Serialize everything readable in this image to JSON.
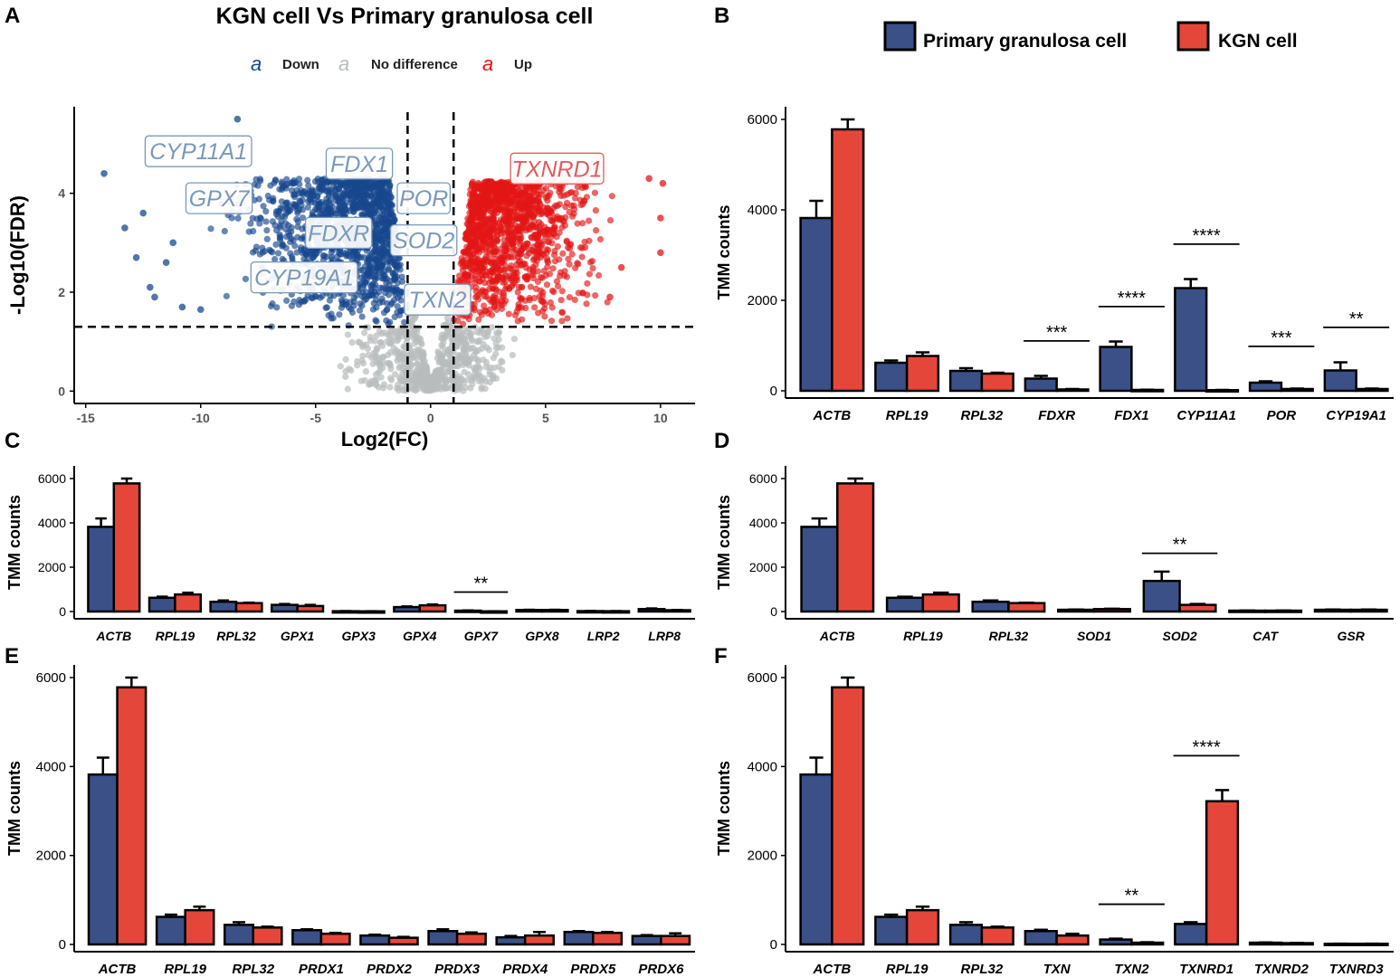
{
  "colors": {
    "primary": "#3C5088",
    "kgn": "#E4473A",
    "down": "#17478D",
    "up": "#E41515",
    "nodiff": "#B8BCBC",
    "label_down": "#7899BB",
    "label_up": "#E05C5C"
  },
  "legend": {
    "primary_label": "Primary granulosa cell",
    "kgn_label": "KGN cell"
  },
  "chart_data": [
    {
      "panel": "A",
      "type": "scatter",
      "title": "KGN cell Vs Primary granulosa cell",
      "xlabel": "Log2(FC)",
      "ylabel": "-Log10(FDR)",
      "xlim": [
        -15.5,
        11.5
      ],
      "ylim": [
        -0.25,
        5.75
      ],
      "xticks": [
        -15,
        -10,
        -5,
        0,
        5,
        10
      ],
      "yticks": [
        0,
        2,
        4
      ],
      "legend_glyph": "a",
      "legend": [
        {
          "name": "Down",
          "color_key": "down"
        },
        {
          "name": "No difference",
          "color_key": "nodiff"
        },
        {
          "name": "Up",
          "color_key": "up"
        }
      ],
      "thresholds": {
        "log2fc": [
          -1,
          1
        ],
        "neg_log10_fdr": 1.3
      },
      "labels": [
        {
          "text": "CYP11A1",
          "x": -10.1,
          "y": 4.85,
          "group": "down"
        },
        {
          "text": "FDX1",
          "x": -3.1,
          "y": 4.6,
          "group": "down"
        },
        {
          "text": "GPX7",
          "x": -9.2,
          "y": 3.9,
          "group": "down"
        },
        {
          "text": "FDXR",
          "x": -4.0,
          "y": 3.2,
          "group": "down"
        },
        {
          "text": "CYP19A1",
          "x": -5.5,
          "y": 2.3,
          "group": "down"
        },
        {
          "text": "POR",
          "x": -0.3,
          "y": 3.9,
          "group": "down"
        },
        {
          "text": "SOD2",
          "x": -0.3,
          "y": 3.05,
          "group": "down"
        },
        {
          "text": "TXN2",
          "x": 0.3,
          "y": 1.85,
          "group": "down"
        },
        {
          "text": "TXNRD1",
          "x": 5.5,
          "y": 4.5,
          "group": "up"
        }
      ],
      "outlier_points": [
        {
          "x": -8.4,
          "y": 5.5,
          "group": "down"
        },
        {
          "x": -14.2,
          "y": 4.4,
          "group": "down"
        },
        {
          "x": -12.5,
          "y": 3.6,
          "group": "down"
        },
        {
          "x": -13.3,
          "y": 3.3,
          "group": "down"
        },
        {
          "x": -12.8,
          "y": 2.7,
          "group": "down"
        },
        {
          "x": -11.5,
          "y": 2.6,
          "group": "down"
        },
        {
          "x": -12.2,
          "y": 2.1,
          "group": "down"
        },
        {
          "x": -12.0,
          "y": 1.9,
          "group": "down"
        },
        {
          "x": -10.8,
          "y": 1.7,
          "group": "down"
        },
        {
          "x": -10.0,
          "y": 1.65,
          "group": "down"
        },
        {
          "x": -11.2,
          "y": 3.0,
          "group": "down"
        },
        {
          "x": 10.0,
          "y": 3.5,
          "group": "up"
        },
        {
          "x": 10.1,
          "y": 4.2,
          "group": "up"
        },
        {
          "x": 9.5,
          "y": 4.3,
          "group": "up"
        },
        {
          "x": 10.0,
          "y": 2.8,
          "group": "up"
        },
        {
          "x": 8.3,
          "y": 2.5,
          "group": "up"
        },
        {
          "x": 7.8,
          "y": 1.9,
          "group": "up"
        }
      ]
    },
    {
      "panel": "B",
      "type": "bar",
      "ylabel": "TMM counts",
      "ylim": [
        0,
        6000
      ],
      "yticks": [
        0,
        2000,
        4000,
        6000
      ],
      "categories": [
        "ACTB",
        "RPL19",
        "RPL32",
        "FDXR",
        "FDX1",
        "CYP11A1",
        "POR",
        "CYP19A1"
      ],
      "series": [
        {
          "name": "Primary granulosa cell",
          "values": [
            3820,
            620,
            440,
            270,
            970,
            2270,
            180,
            450
          ],
          "errors": [
            380,
            50,
            60,
            60,
            120,
            200,
            30,
            180
          ]
        },
        {
          "name": "KGN cell",
          "values": [
            5780,
            770,
            380,
            30,
            20,
            15,
            40,
            40
          ],
          "errors": [
            220,
            80,
            20,
            10,
            5,
            5,
            10,
            10
          ]
        }
      ],
      "significance": [
        {
          "category": "FDXR",
          "stars": "***"
        },
        {
          "category": "FDX1",
          "stars": "****"
        },
        {
          "category": "CYP11A1",
          "stars": "****"
        },
        {
          "category": "POR",
          "stars": "***"
        },
        {
          "category": "CYP19A1",
          "stars": "**"
        }
      ]
    },
    {
      "panel": "C",
      "type": "bar",
      "ylabel": "TMM counts",
      "ylim": [
        0,
        6000
      ],
      "yticks": [
        0,
        2000,
        4000,
        6000
      ],
      "categories": [
        "ACTB",
        "RPL19",
        "RPL32",
        "GPX1",
        "GPX3",
        "GPX4",
        "GPX7",
        "GPX8",
        "LRP2",
        "LRP8"
      ],
      "series": [
        {
          "name": "Primary granulosa cell",
          "values": [
            3820,
            620,
            440,
            300,
            15,
            200,
            40,
            70,
            20,
            110
          ],
          "errors": [
            380,
            50,
            60,
            40,
            5,
            30,
            10,
            10,
            5,
            30
          ]
        },
        {
          "name": "KGN cell",
          "values": [
            5780,
            770,
            380,
            250,
            10,
            280,
            10,
            70,
            15,
            60
          ],
          "errors": [
            220,
            80,
            20,
            50,
            5,
            40,
            3,
            10,
            5,
            10
          ]
        }
      ],
      "significance": [
        {
          "category": "GPX7",
          "stars": "**"
        }
      ]
    },
    {
      "panel": "D",
      "type": "bar",
      "ylabel": "TMM counts",
      "ylim": [
        0,
        6000
      ],
      "yticks": [
        0,
        2000,
        4000,
        6000
      ],
      "categories": [
        "ACTB",
        "RPL19",
        "RPL32",
        "SOD1",
        "SOD2",
        "CAT",
        "GSR"
      ],
      "series": [
        {
          "name": "Primary granulosa cell",
          "values": [
            3820,
            620,
            440,
            80,
            1380,
            40,
            80
          ],
          "errors": [
            380,
            50,
            60,
            10,
            420,
            5,
            10
          ]
        },
        {
          "name": "KGN cell",
          "values": [
            5780,
            770,
            380,
            110,
            300,
            40,
            80
          ],
          "errors": [
            220,
            80,
            20,
            20,
            40,
            5,
            10
          ]
        }
      ],
      "significance": [
        {
          "category": "SOD2",
          "stars": "**"
        }
      ]
    },
    {
      "panel": "E",
      "type": "bar",
      "ylabel": "TMM counts",
      "ylim": [
        0,
        6000
      ],
      "yticks": [
        0,
        2000,
        4000,
        6000
      ],
      "categories": [
        "ACTB",
        "RPL19",
        "RPL32",
        "PRDX1",
        "PRDX2",
        "PRDX3",
        "PRDX4",
        "PRDX5",
        "PRDX6"
      ],
      "series": [
        {
          "name": "Primary granulosa cell",
          "values": [
            3820,
            620,
            440,
            320,
            200,
            300,
            160,
            280,
            190
          ],
          "errors": [
            380,
            50,
            60,
            20,
            20,
            40,
            30,
            20,
            20
          ]
        },
        {
          "name": "KGN cell",
          "values": [
            5780,
            770,
            380,
            240,
            150,
            240,
            200,
            260,
            190
          ],
          "errors": [
            220,
            80,
            20,
            20,
            20,
            30,
            80,
            20,
            60
          ]
        }
      ],
      "significance": []
    },
    {
      "panel": "F",
      "type": "bar",
      "ylabel": "TMM counts",
      "ylim": [
        0,
        6000
      ],
      "yticks": [
        0,
        2000,
        4000,
        6000
      ],
      "categories": [
        "ACTB",
        "RPL19",
        "RPL32",
        "TXN",
        "TXN2",
        "TXNRD1",
        "TXNRD2",
        "TXNRD3"
      ],
      "series": [
        {
          "name": "Primary granulosa cell",
          "values": [
            3820,
            620,
            440,
            300,
            110,
            460,
            40,
            15
          ],
          "errors": [
            380,
            50,
            60,
            30,
            20,
            40,
            5,
            3
          ]
        },
        {
          "name": "KGN cell",
          "values": [
            5780,
            770,
            380,
            200,
            40,
            3220,
            30,
            15
          ],
          "errors": [
            220,
            80,
            20,
            40,
            10,
            250,
            5,
            3
          ]
        }
      ],
      "significance": [
        {
          "category": "TXN2",
          "stars": "**"
        },
        {
          "category": "TXNRD1",
          "stars": "****"
        }
      ]
    }
  ]
}
